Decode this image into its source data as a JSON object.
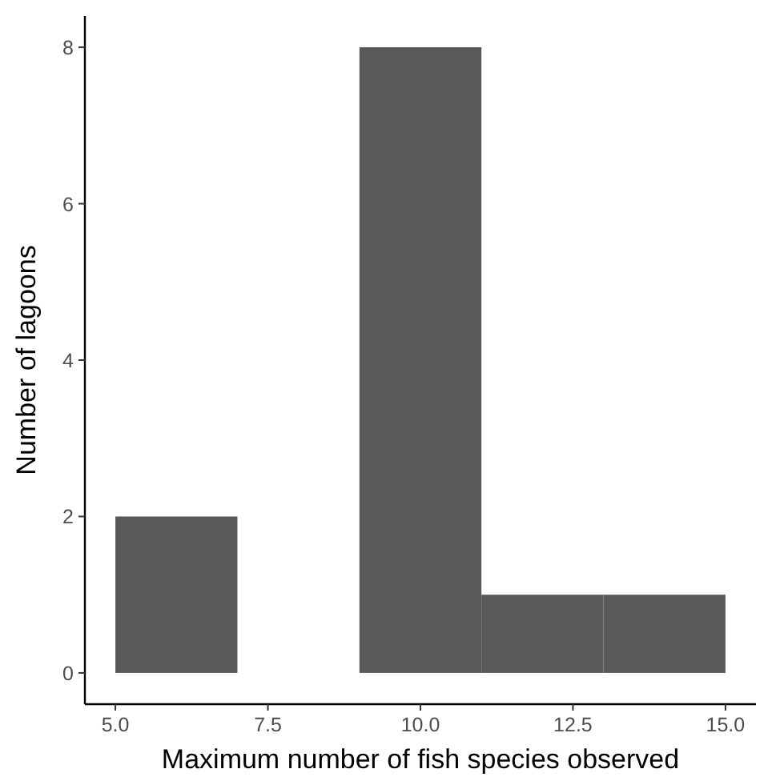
{
  "chart_data": {
    "type": "histogram",
    "xlabel": "Maximum number of fish species observed",
    "ylabel": "Number of lagoons",
    "bins": [
      5,
      7,
      9,
      11,
      13,
      15
    ],
    "values": [
      2,
      0,
      8,
      1,
      1
    ],
    "color": "#595959",
    "xlim": [
      4.5,
      15.5
    ],
    "ylim": [
      -0.4,
      8.4
    ],
    "xticks": [
      {
        "value": 5,
        "label": "5.0"
      },
      {
        "value": 7.5,
        "label": "7.5"
      },
      {
        "value": 10,
        "label": "10.0"
      },
      {
        "value": 12.5,
        "label": "12.5"
      },
      {
        "value": 15,
        "label": "15.0"
      }
    ],
    "yticks": [
      0,
      2,
      4,
      6,
      8
    ],
    "grid": false
  }
}
